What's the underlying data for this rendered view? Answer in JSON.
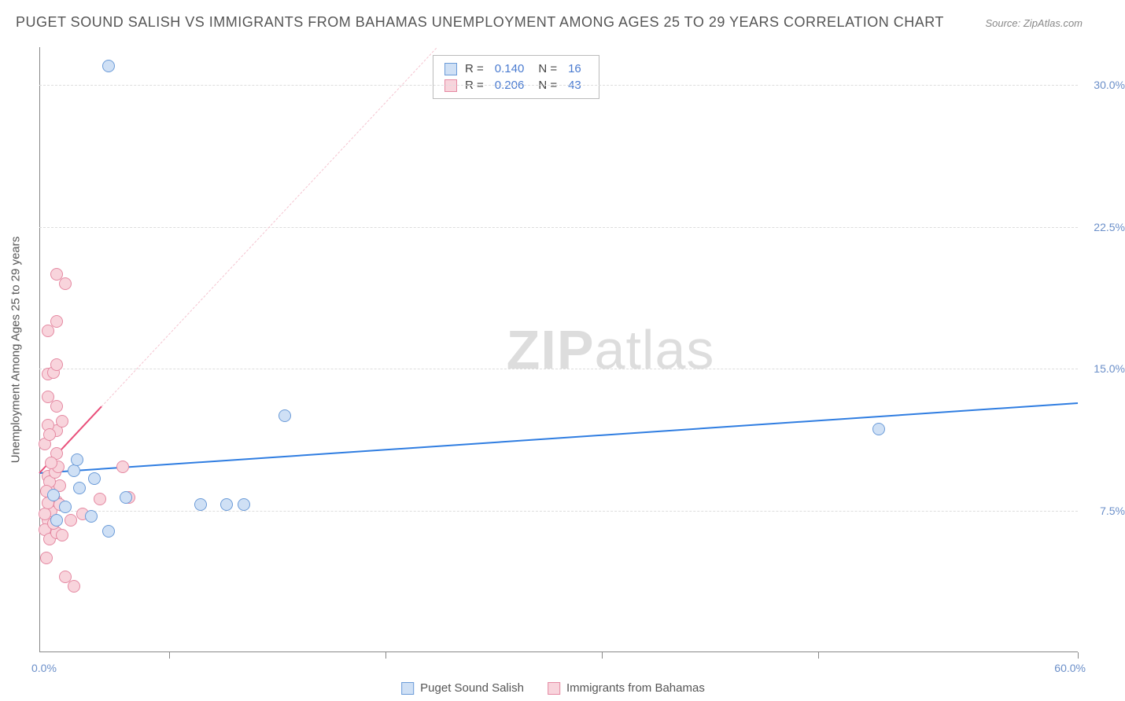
{
  "title": "PUGET SOUND SALISH VS IMMIGRANTS FROM BAHAMAS UNEMPLOYMENT AMONG AGES 25 TO 29 YEARS CORRELATION CHART",
  "source": "Source: ZipAtlas.com",
  "watermark_a": "ZIP",
  "watermark_b": "atlas",
  "y_axis_title": "Unemployment Among Ages 25 to 29 years",
  "x_origin_label": "0.0%",
  "x_end_label": "60.0%",
  "chart": {
    "type": "scatter",
    "xlim": [
      0,
      60
    ],
    "ylim": [
      0,
      32
    ],
    "y_ticks": [
      7.5,
      15.0,
      22.5,
      30.0
    ],
    "y_tick_labels": [
      "7.5%",
      "15.0%",
      "22.5%",
      "30.0%"
    ],
    "x_ticks": [
      0,
      7.5,
      20,
      32.5,
      45,
      60
    ],
    "grid_color": "#dddddd",
    "axis_color": "#888888",
    "background_color": "#ffffff",
    "marker_radius": 8,
    "marker_stroke": 1.5,
    "series": [
      {
        "name": "Puget Sound Salish",
        "fill": "#cfe0f5",
        "stroke": "#6b9bd8",
        "R": "0.140",
        "N": "16",
        "trend": {
          "x1": 0,
          "y1": 9.5,
          "x2": 60,
          "y2": 13.2,
          "solid_until_x": 60,
          "color": "#2f7de1",
          "width": 2
        },
        "points": [
          [
            4.0,
            31.0
          ],
          [
            1.0,
            7.0
          ],
          [
            2.0,
            9.6
          ],
          [
            4.0,
            6.4
          ],
          [
            3.0,
            7.2
          ],
          [
            48.5,
            11.8
          ],
          [
            14.2,
            12.5
          ],
          [
            2.2,
            10.2
          ],
          [
            10.8,
            7.8
          ],
          [
            9.3,
            7.8
          ],
          [
            11.8,
            7.8
          ],
          [
            5.0,
            8.2
          ],
          [
            2.3,
            8.7
          ],
          [
            0.8,
            8.3
          ],
          [
            1.5,
            7.7
          ],
          [
            3.2,
            9.2
          ]
        ]
      },
      {
        "name": "Immigrants from Bahamas",
        "fill": "#f8d4dc",
        "stroke": "#e589a2",
        "R": "0.206",
        "N": "43",
        "trend": {
          "x1": 0,
          "y1": 9.5,
          "x2": 25,
          "y2": 34,
          "solid_until_x": 3.6,
          "color": "#e94f7a",
          "width": 2,
          "dash_color": "#f5c4d0"
        },
        "points": [
          [
            0.5,
            7.0
          ],
          [
            0.7,
            7.5
          ],
          [
            1.0,
            8.0
          ],
          [
            0.3,
            6.5
          ],
          [
            0.8,
            8.2
          ],
          [
            1.2,
            7.8
          ],
          [
            0.6,
            6.0
          ],
          [
            0.4,
            5.0
          ],
          [
            1.5,
            4.0
          ],
          [
            2.0,
            3.5
          ],
          [
            1.0,
            20.0
          ],
          [
            1.5,
            19.5
          ],
          [
            0.5,
            17.0
          ],
          [
            1.0,
            17.5
          ],
          [
            0.5,
            14.7
          ],
          [
            0.8,
            14.8
          ],
          [
            1.0,
            15.2
          ],
          [
            1.0,
            11.7
          ],
          [
            1.3,
            12.2
          ],
          [
            0.5,
            12.0
          ],
          [
            1.0,
            10.5
          ],
          [
            0.5,
            9.3
          ],
          [
            0.7,
            8.8
          ],
          [
            1.2,
            8.8
          ],
          [
            1.8,
            7.0
          ],
          [
            2.5,
            7.3
          ],
          [
            3.5,
            8.1
          ],
          [
            4.8,
            9.8
          ],
          [
            5.2,
            8.2
          ],
          [
            1.0,
            6.3
          ],
          [
            0.3,
            7.3
          ],
          [
            0.5,
            7.9
          ],
          [
            0.8,
            6.8
          ],
          [
            1.3,
            6.2
          ],
          [
            0.6,
            9.0
          ],
          [
            0.9,
            9.5
          ],
          [
            1.1,
            9.8
          ],
          [
            0.4,
            8.5
          ],
          [
            0.7,
            10.0
          ],
          [
            1.0,
            13.0
          ],
          [
            0.5,
            13.5
          ],
          [
            0.3,
            11.0
          ],
          [
            0.6,
            11.5
          ]
        ]
      }
    ]
  },
  "stats_box": {
    "rows": [
      {
        "swatch_fill": "#cfe0f5",
        "swatch_stroke": "#6b9bd8",
        "r_label": "R  =",
        "r_val": "0.140",
        "n_label": "N  =",
        "n_val": "16"
      },
      {
        "swatch_fill": "#f8d4dc",
        "swatch_stroke": "#e589a2",
        "r_label": "R  =",
        "r_val": "0.206",
        "n_label": "N  =",
        "n_val": "43"
      }
    ]
  },
  "bottom_legend": [
    {
      "swatch_fill": "#cfe0f5",
      "swatch_stroke": "#6b9bd8",
      "label": "Puget Sound Salish"
    },
    {
      "swatch_fill": "#f8d4dc",
      "swatch_stroke": "#e589a2",
      "label": "Immigrants from Bahamas"
    }
  ]
}
